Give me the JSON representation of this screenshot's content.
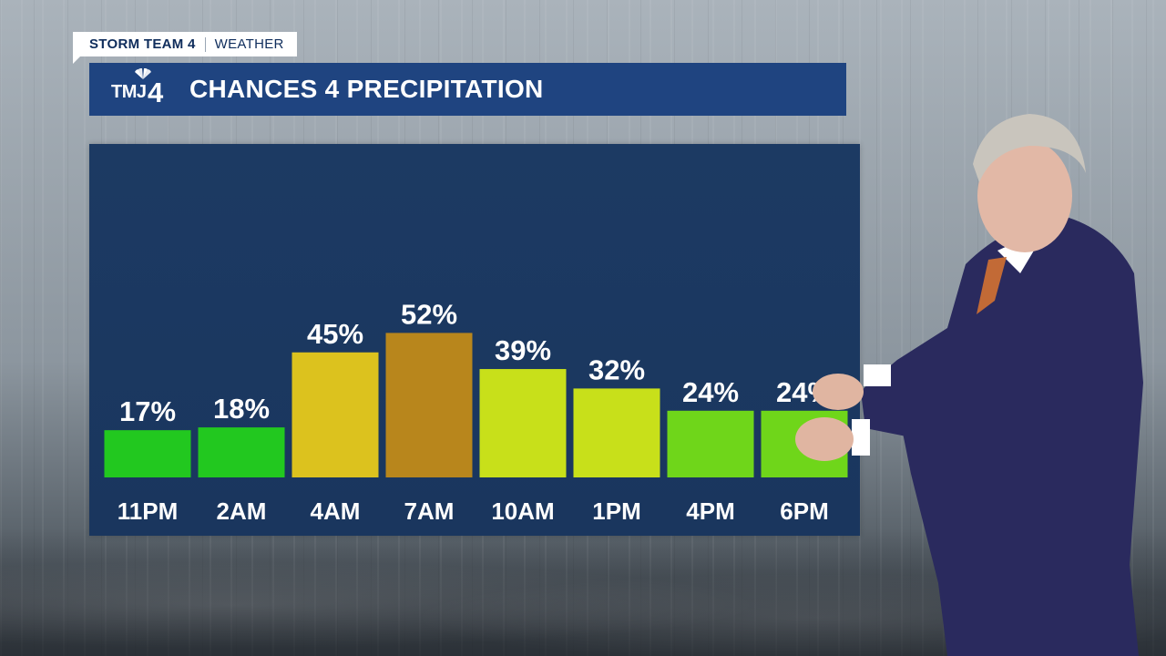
{
  "brand": {
    "program": "STORM TEAM 4",
    "section": "WEATHER"
  },
  "logo": {
    "text": "TMJ",
    "number": "4"
  },
  "title": "CHANCES 4 PRECIPITATION",
  "colors": {
    "title_bar": "#1f4480",
    "panel": "#1c3a63",
    "green": "#22c81f",
    "lime": "#6fd61a",
    "yellow_green": "#c8e01a",
    "gold": "#dcc21e",
    "amber": "#b8861c"
  },
  "chart_data": {
    "type": "bar",
    "title": "CHANCES 4 PRECIPITATION",
    "xlabel": "",
    "ylabel": "",
    "ylim": [
      0,
      100
    ],
    "grid": false,
    "categories": [
      "11PM",
      "2AM",
      "4AM",
      "7AM",
      "10AM",
      "1PM",
      "4PM",
      "6PM"
    ],
    "values": [
      17,
      18,
      45,
      52,
      39,
      32,
      24,
      24
    ],
    "value_labels": [
      "17%",
      "18%",
      "45%",
      "52%",
      "39%",
      "32%",
      "24%",
      "24%"
    ],
    "bar_colors": [
      "#22c81f",
      "#22c81f",
      "#dcc21e",
      "#b8861c",
      "#c8e01a",
      "#c8e01a",
      "#6fd61a",
      "#6fd61a"
    ]
  }
}
